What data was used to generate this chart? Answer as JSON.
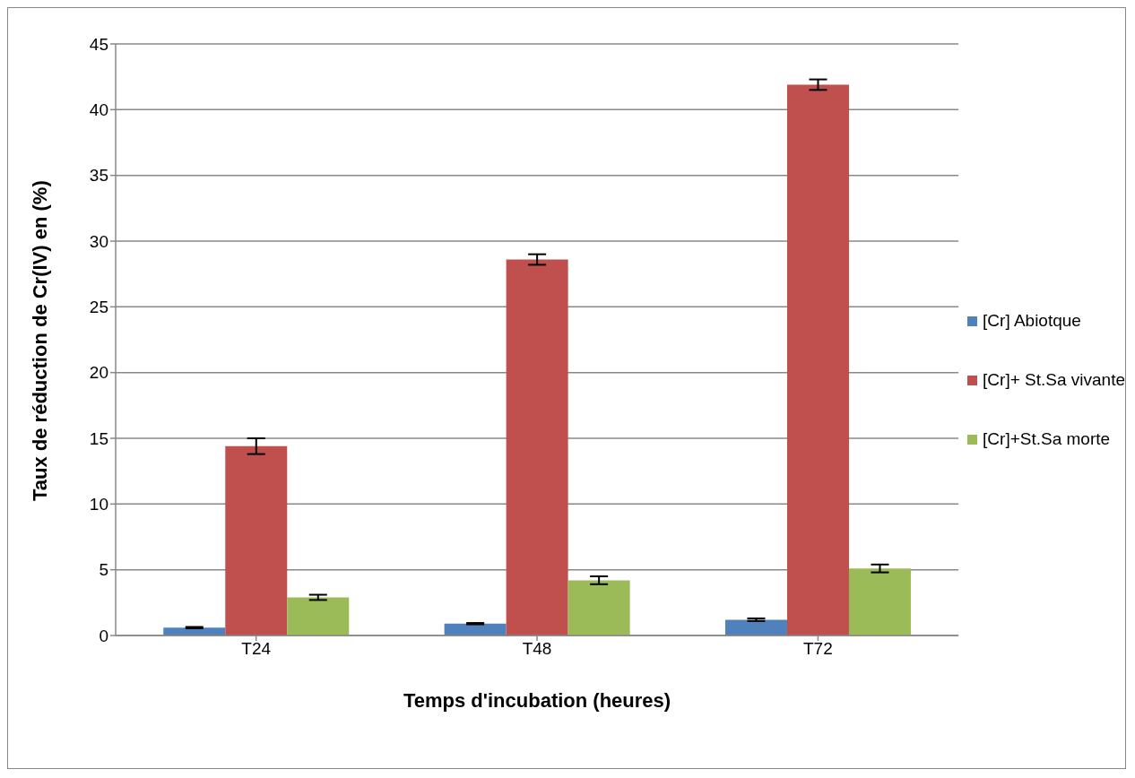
{
  "chart_data": {
    "type": "bar",
    "xlabel": "Temps d'incubation (heures)",
    "ylabel": "Taux de réduction de Cr(IV) en (%)",
    "categories": [
      "T24",
      "T48",
      "T72"
    ],
    "series": [
      {
        "name": "[Cr] Abiotque",
        "color": "#4f81bd",
        "values": [
          0.6,
          0.9,
          1.2
        ],
        "errors": [
          0.05,
          0.05,
          0.1
        ]
      },
      {
        "name": "[Cr]+ St.Sa vivante",
        "color": "#c0504d",
        "values": [
          14.4,
          28.6,
          41.9
        ],
        "errors": [
          0.6,
          0.4,
          0.4
        ]
      },
      {
        "name": "[Cr]+St.Sa morte",
        "color": "#9bbb59",
        "values": [
          2.9,
          4.2,
          5.1
        ],
        "errors": [
          0.2,
          0.3,
          0.3
        ]
      }
    ],
    "ylim": [
      0,
      45
    ],
    "yticks": [
      0,
      5,
      10,
      15,
      20,
      25,
      30,
      35,
      40,
      45
    ],
    "grid": "y",
    "legend": "right"
  }
}
